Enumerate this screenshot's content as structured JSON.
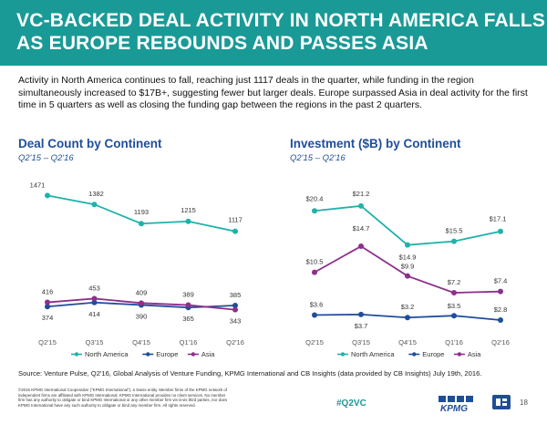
{
  "title": "VC-BACKED DEAL ACTIVITY IN NORTH AMERICA FALLS AS EUROPE REBOUNDS AND PASSES ASIA",
  "summary": "Activity in North America continues to fall, reaching just 1117 deals in the quarter, while funding in the region simultaneously increased to $17B+, suggesting fewer but larger deals. Europe surpassed Asia in deal activity for the first time in 5 quarters as well as closing the funding gap between the regions in the past 2 quarters.",
  "charts": {
    "left": {
      "title": "Deal Count by Continent",
      "subtitle": "Q2'15 – Q2'16"
    },
    "right": {
      "title": "Investment ($B) by Continent",
      "subtitle": "Q2'15 – Q2'16"
    }
  },
  "colors": {
    "north_america": "#1fb2ab",
    "europe": "#1f4e99",
    "asia": "#8e2f8c",
    "banner": "#1a9a96",
    "heading": "#1f4e99"
  },
  "chart_data": [
    {
      "type": "line",
      "title": "Deal Count by Continent",
      "subtitle": "Q2'15 – Q2'16",
      "categories": [
        "Q2'15",
        "Q3'15",
        "Q4'15",
        "Q1'16",
        "Q2'16"
      ],
      "series": [
        {
          "name": "North America",
          "values": [
            1471,
            1382,
            1193,
            1215,
            1117
          ],
          "labels": [
            "1471",
            "1382",
            "1193",
            "1215",
            "1117"
          ]
        },
        {
          "name": "Europe",
          "values": [
            374,
            414,
            390,
            365,
            385
          ],
          "labels": [
            "374",
            "414",
            "390",
            "365",
            "385"
          ]
        },
        {
          "name": "Asia",
          "values": [
            416,
            453,
            409,
            389,
            343
          ],
          "labels": [
            "416",
            "453",
            "409",
            "389",
            "343"
          ]
        }
      ],
      "ylim": [
        250,
        1600
      ],
      "grid": false,
      "legend": "bottom"
    },
    {
      "type": "line",
      "title": "Investment ($B) by Continent",
      "subtitle": "Q2'15 – Q2'16",
      "categories": [
        "Q2'15",
        "Q3'15",
        "Q4'15",
        "Q1'16",
        "Q2'16"
      ],
      "series": [
        {
          "name": "North America",
          "values": [
            20.4,
            21.2,
            14.9,
            15.5,
            17.1
          ],
          "labels": [
            "$20.4",
            "$21.2",
            "$14.9",
            "$15.5",
            "$17.1"
          ]
        },
        {
          "name": "Europe",
          "values": [
            3.6,
            3.7,
            3.2,
            3.5,
            2.8
          ],
          "labels": [
            "$3.6",
            "$3.7",
            "$3.2",
            "$3.5",
            "$2.8"
          ]
        },
        {
          "name": "Asia",
          "values": [
            10.5,
            14.7,
            9.9,
            7.2,
            7.4
          ],
          "labels": [
            "$10.5",
            "$14.7",
            "$9.9",
            "$7.2",
            "$7.4"
          ]
        }
      ],
      "ylim": [
        0,
        25
      ],
      "grid": false,
      "legend": "bottom"
    }
  ],
  "source": "Source: Venture Pulse, Q2'16, Global Analysis of Venture Funding, KPMG International and CB Insights (data provided by CB Insights) July 19th, 2016.",
  "legal": "©2016 KPMG International Cooperative (\"KPMG International\"), a Swiss entity. Member firms of the KPMG network of independent firms are affiliated with KPMG International. KPMG International provides no client services. No member firm has any authority to obligate or bind KPMG International or any other member firm vis-à-vis third parties, nor does KPMG International have any such authority to obligate or bind any member firm. All rights reserved.",
  "hashtag": "#Q2VC",
  "kpmg_logo_text": "KPMG",
  "page_number": "18"
}
